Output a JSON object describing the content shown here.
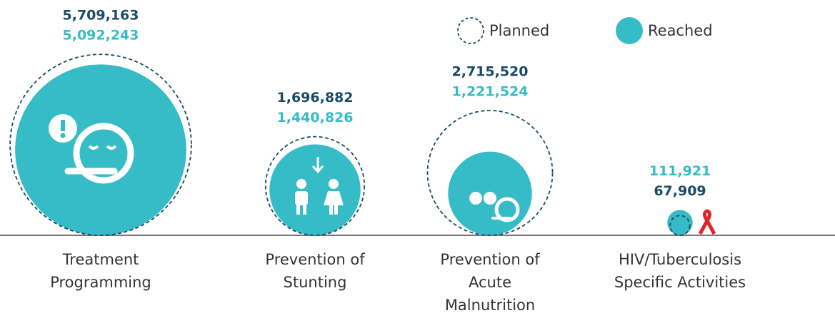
{
  "chart_data": {
    "type": "bubble",
    "categories": [
      "Treatment Programming",
      "Prevention of Stunting",
      "Prevention of Acute Malnutrition",
      "HIV/Tuberculosis Specific Activities"
    ],
    "series": [
      {
        "name": "Planned",
        "color": "#1b4a66",
        "values": [
          5709163,
          1696882,
          2715520,
          67909
        ],
        "value_labels": [
          "5,709,163",
          "1,696,882",
          "2,715,520",
          "67,909"
        ]
      },
      {
        "name": "Reached",
        "color": "#36bcc6",
        "values": [
          5092243,
          1440826,
          1221524,
          111921
        ],
        "value_labels": [
          "5,092,243",
          "1,440,826",
          "1,221,524",
          "111,921"
        ]
      }
    ]
  }
}
